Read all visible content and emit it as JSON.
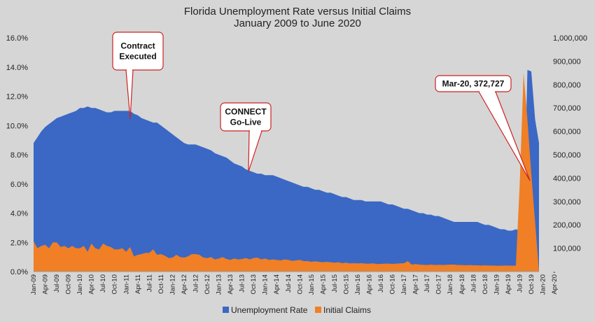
{
  "chart_data": {
    "type": "area",
    "title": "Florida Unemployment Rate versus Initial Claims",
    "subtitle": "January 2009 to June 2020",
    "xlabel": "",
    "ylabel": "",
    "y_left": {
      "ylim": [
        0,
        16
      ],
      "ticks": [
        "0.0%",
        "2.0%",
        "4.0%",
        "6.0%",
        "8.0%",
        "10.0%",
        "12.0%",
        "14.0%",
        "16.0%"
      ]
    },
    "y_right": {
      "ylim": [
        0,
        1000000
      ],
      "ticks": [
        "-",
        "100,000",
        "200,000",
        "300,000",
        "400,000",
        "500,000",
        "600,000",
        "700,000",
        "800,000",
        "900,000",
        "1,000,000"
      ]
    },
    "x_tick_labels": [
      "Jan-09",
      "Apr-09",
      "Jul-09",
      "Oct-09",
      "Jan-10",
      "Apr-10",
      "Jul-10",
      "Oct-10",
      "Jan-11",
      "Apr-11",
      "Jul-11",
      "Oct-11",
      "Jan-12",
      "Apr-12",
      "Jul-12",
      "Oct-12",
      "Jan-13",
      "Apr-13",
      "Jul-13",
      "Oct-13",
      "Jan-14",
      "Apr-14",
      "Jul-14",
      "Oct-14",
      "Jan-15",
      "Apr-15",
      "Jul-15",
      "Oct-15",
      "Jan-16",
      "Apr-16",
      "Jul-16",
      "Oct-16",
      "Jan-17",
      "Apr-17",
      "Jul-17",
      "Oct-17",
      "Jan-18",
      "Apr-18",
      "Jul-18",
      "Oct-18",
      "Jan-19",
      "Apr-19",
      "Jul-19",
      "Oct-19",
      "Jan-20",
      "Apr-20"
    ],
    "series": [
      {
        "name": "Unemployment Rate",
        "axis": "left",
        "color": "#3a68c4",
        "values": [
          8.8,
          9.2,
          9.6,
          9.9,
          10.1,
          10.3,
          10.5,
          10.6,
          10.7,
          10.8,
          10.9,
          11.0,
          11.2,
          11.2,
          11.3,
          11.2,
          11.2,
          11.1,
          11.0,
          10.9,
          10.9,
          11.0,
          11.0,
          11.0,
          11.0,
          11.0,
          10.8,
          10.7,
          10.5,
          10.4,
          10.3,
          10.2,
          10.2,
          10.0,
          9.8,
          9.6,
          9.4,
          9.2,
          9.0,
          8.8,
          8.7,
          8.7,
          8.7,
          8.6,
          8.5,
          8.4,
          8.3,
          8.1,
          8.0,
          7.9,
          7.8,
          7.6,
          7.4,
          7.3,
          7.2,
          7.0,
          6.9,
          6.8,
          6.7,
          6.7,
          6.6,
          6.6,
          6.6,
          6.5,
          6.4,
          6.3,
          6.2,
          6.1,
          6.0,
          5.9,
          5.8,
          5.8,
          5.7,
          5.6,
          5.6,
          5.5,
          5.4,
          5.4,
          5.3,
          5.2,
          5.1,
          5.1,
          5.0,
          4.9,
          4.9,
          4.9,
          4.8,
          4.8,
          4.8,
          4.8,
          4.8,
          4.7,
          4.6,
          4.6,
          4.5,
          4.4,
          4.3,
          4.3,
          4.2,
          4.1,
          4.0,
          4.0,
          3.9,
          3.9,
          3.8,
          3.8,
          3.7,
          3.6,
          3.5,
          3.4,
          3.4,
          3.4,
          3.4,
          3.4,
          3.4,
          3.4,
          3.3,
          3.2,
          3.2,
          3.1,
          3.0,
          2.9,
          2.9,
          2.8,
          2.8,
          2.9,
          2.8,
          2.8,
          13.8,
          13.7,
          10.4,
          8.8
        ]
      },
      {
        "name": "Initial Claims",
        "axis": "right",
        "color": "#f07f25",
        "values": [
          130000,
          100000,
          110000,
          115000,
          100000,
          125000,
          125000,
          105000,
          110000,
          100000,
          110000,
          100000,
          100000,
          110000,
          85000,
          120000,
          100000,
          95000,
          120000,
          110000,
          105000,
          95000,
          95000,
          100000,
          85000,
          105000,
          65000,
          72000,
          75000,
          80000,
          80000,
          95000,
          72000,
          75000,
          68000,
          58000,
          60000,
          72000,
          62000,
          60000,
          65000,
          75000,
          75000,
          72000,
          60000,
          58000,
          62000,
          52000,
          56000,
          62000,
          54000,
          50000,
          56000,
          52000,
          54000,
          58000,
          52000,
          58000,
          60000,
          52000,
          56000,
          50000,
          52000,
          50000,
          48000,
          52000,
          50000,
          46000,
          48000,
          50000,
          45000,
          45000,
          42000,
          44000,
          42000,
          40000,
          42000,
          40000,
          38000,
          40000,
          36000,
          38000,
          35000,
          36000,
          35000,
          36000,
          34000,
          34000,
          35000,
          32000,
          33000,
          34000,
          34000,
          33000,
          34000,
          35000,
          36000,
          45000,
          30000,
          32000,
          30000,
          29000,
          28000,
          30000,
          28000,
          29000,
          28000,
          29000,
          30000,
          30000,
          28000,
          28000,
          27000,
          28000,
          27000,
          27000,
          26000,
          27000,
          26000,
          26000,
          25000,
          25000,
          26000,
          26000,
          25000,
          26000,
          372727,
          850000,
          650000,
          420000
        ]
      }
    ],
    "legend": {
      "position": "bottom",
      "entries": [
        "Unemployment Rate",
        "Initial Claims"
      ]
    },
    "annotations": [
      {
        "text_lines": [
          "Contract",
          "Executed"
        ],
        "target": "Mar-11"
      },
      {
        "text_lines": [
          "CONNECT",
          "Go-Live"
        ],
        "target": "Oct-13"
      },
      {
        "text_lines": [
          "Mar-20,  372,727"
        ],
        "target": "Mar-20"
      }
    ],
    "grid": false
  }
}
